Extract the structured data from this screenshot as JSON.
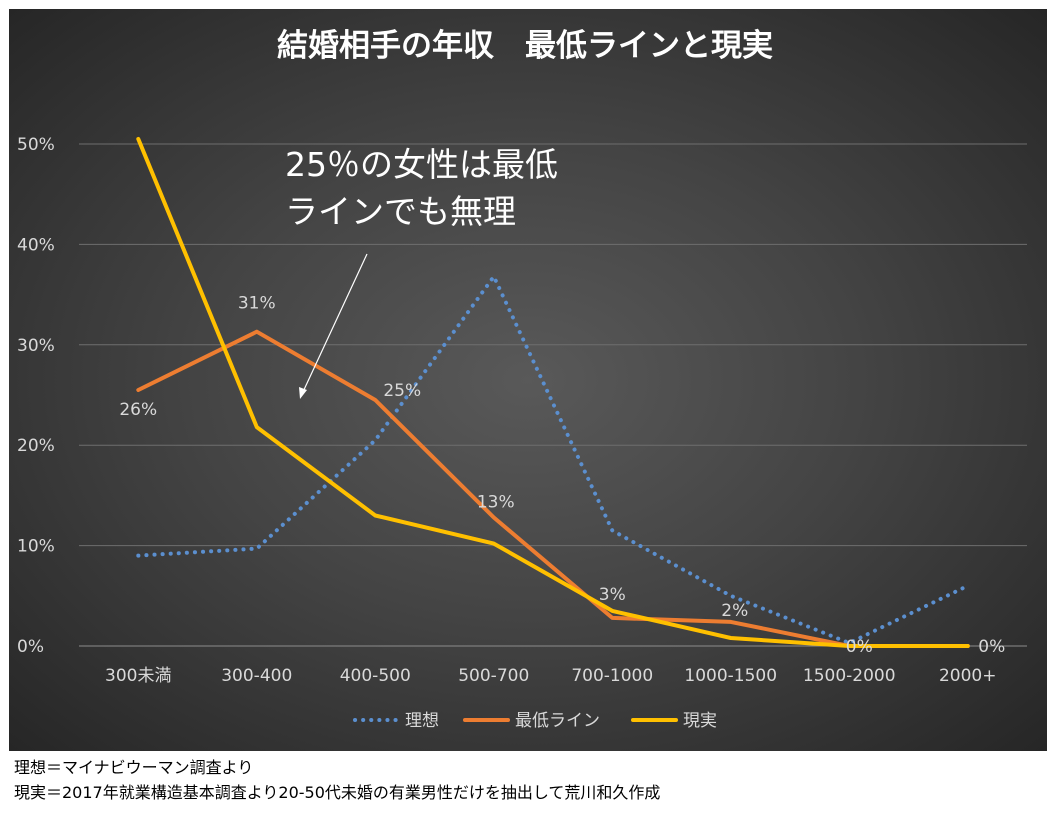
{
  "chart_data": {
    "type": "line",
    "title": "結婚相手の年収　最低ラインと現実",
    "categories": [
      "300未満",
      "300-400",
      "400-500",
      "500-700",
      "700-1000",
      "1000-1500",
      "1500-2000",
      "2000+"
    ],
    "ylim": [
      0,
      0.5
    ],
    "yticks": [
      0,
      0.1,
      0.2,
      0.3,
      0.4,
      0.5
    ],
    "ytick_labels": [
      "0%",
      "10%",
      "20%",
      "30%",
      "40%",
      "50%"
    ],
    "grid": true,
    "legend_position": "bottom",
    "series": [
      {
        "name": "理想",
        "values": [
          0.09,
          0.097,
          0.205,
          0.368,
          0.115,
          0.05,
          0.003,
          0.06
        ],
        "color": "#5b8fcf",
        "style": "dotted"
      },
      {
        "name": "最低ライン",
        "values": [
          0.255,
          0.313,
          0.245,
          0.128,
          0.028,
          0.024,
          0.0,
          0.0
        ],
        "color": "#ed7d31",
        "style": "solid"
      },
      {
        "name": "現実",
        "values": [
          0.505,
          0.218,
          0.13,
          0.102,
          0.035,
          0.008,
          0.0,
          0.0
        ],
        "color": "#ffc000",
        "style": "solid"
      }
    ],
    "data_labels": [
      {
        "series": 1,
        "index": 0,
        "text": "26%"
      },
      {
        "series": 1,
        "index": 1,
        "text": "31%"
      },
      {
        "series": 1,
        "index": 2,
        "text": "25%"
      },
      {
        "series": 1,
        "index": 3,
        "text": "13%"
      },
      {
        "series": 1,
        "index": 4,
        "text": "3%"
      },
      {
        "series": 1,
        "index": 5,
        "text": "2%"
      },
      {
        "series": 1,
        "index": 6,
        "text": "0%"
      },
      {
        "series": 1,
        "index": 7,
        "text": "0%"
      }
    ],
    "annotation": {
      "lines": [
        "25％の女性は最低",
        "ラインでも無理"
      ],
      "arrow_color": "#ffffff"
    }
  },
  "footnotes": {
    "line1": "理想＝マイナビウーマン調査より",
    "line2": "現実＝2017年就業構造基本調査より20-50代未婚の有業男性だけを抽出して荒川和久作成"
  }
}
